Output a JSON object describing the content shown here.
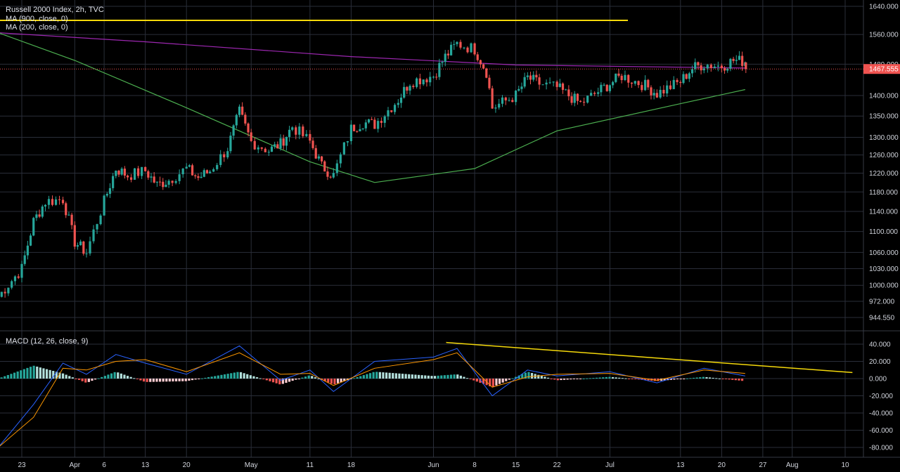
{
  "header": {
    "title": "Russell 2000 Index, 2h, TVC",
    "ma900_label": "MA (900, close, 0)",
    "ma200_label": "MA (200, close, 0)",
    "macd_label": "MACD (12, 26, close, 9)"
  },
  "colors": {
    "background": "#000000",
    "grid": "#2a2e39",
    "up": "#26a69a",
    "down": "#ef5350",
    "ma900": "#9c27b0",
    "ma200": "#4caf50",
    "trendline": "#f5d90a",
    "price_line": "#ef5350",
    "macd_line": "#2962ff",
    "signal_line": "#ff9800",
    "hist_up_strong": "#26a69a",
    "hist_up_weak": "#b2dfdb",
    "hist_down_strong": "#ef5350",
    "hist_down_weak": "#ffcdd2"
  },
  "price_axis": {
    "ticks": [
      "1640.000",
      "1560.000",
      "1480.000",
      "1400.000",
      "1350.000",
      "1300.000",
      "1260.000",
      "1220.000",
      "1180.000",
      "1140.000",
      "1100.000",
      "1060.000",
      "1030.000",
      "1000.000",
      "972.000",
      "944.550"
    ],
    "current_price": "1467.555"
  },
  "macd_axis": {
    "ticks": [
      "40.000",
      "20.000",
      "0.000",
      "-20.000",
      "-40.000",
      "-60.000",
      "-80.000"
    ]
  },
  "time_axis": {
    "labels": [
      "23",
      "Apr",
      "6",
      "13",
      "20",
      "May",
      "11",
      "18",
      "Jun",
      "8",
      "15",
      "22",
      "Jul",
      "13",
      "20",
      "27",
      "Aug",
      "10"
    ]
  },
  "chart_data": [
    {
      "type": "candlestick",
      "title": "Russell 2000 Index, 2h, TVC",
      "scale": "log",
      "ylim": [
        944.55,
        1640
      ],
      "current_price": 1467.555,
      "close_path": [
        [
          "Mar 19",
          980
        ],
        [
          "Mar 23",
          1030
        ],
        [
          "Mar 25",
          1120
        ],
        [
          "Mar 27",
          1160
        ],
        [
          "Mar 30",
          1165
        ],
        [
          "Apr 1",
          1080
        ],
        [
          "Apr 3",
          1060
        ],
        [
          "Apr 6",
          1160
        ],
        [
          "Apr 8",
          1230
        ],
        [
          "Apr 10",
          1215
        ],
        [
          "Apr 13",
          1225
        ],
        [
          "Apr 15",
          1195
        ],
        [
          "Apr 17",
          1205
        ],
        [
          "Apr 20",
          1230
        ],
        [
          "Apr 22",
          1210
        ],
        [
          "Apr 24",
          1225
        ],
        [
          "Apr 27",
          1275
        ],
        [
          "Apr 29",
          1360
        ],
        [
          "May 1",
          1290
        ],
        [
          "May 4",
          1270
        ],
        [
          "May 6",
          1285
        ],
        [
          "May 8",
          1325
        ],
        [
          "May 11",
          1290
        ],
        [
          "May 13",
          1235
        ],
        [
          "May 15",
          1215
        ],
        [
          "May 18",
          1320
        ],
        [
          "May 20",
          1335
        ],
        [
          "May 22",
          1330
        ],
        [
          "May 26",
          1390
        ],
        [
          "May 28",
          1435
        ],
        [
          "Jun 1",
          1450
        ],
        [
          "Jun 3",
          1500
        ],
        [
          "Jun 5",
          1535
        ],
        [
          "Jun 8",
          1520
        ],
        [
          "Jun 10",
          1460
        ],
        [
          "Jun 11",
          1370
        ],
        [
          "Jun 15",
          1400
        ],
        [
          "Jun 17",
          1445
        ],
        [
          "Jun 19",
          1430
        ],
        [
          "Jun 22",
          1420
        ],
        [
          "Jun 24",
          1400
        ],
        [
          "Jun 26",
          1380
        ],
        [
          "Jun 29",
          1410
        ],
        [
          "Jul 1",
          1430
        ],
        [
          "Jul 3",
          1450
        ],
        [
          "Jul 7",
          1425
        ],
        [
          "Jul 9",
          1405
        ],
        [
          "Jul 13",
          1435
        ],
        [
          "Jul 15",
          1470
        ],
        [
          "Jul 17",
          1480
        ],
        [
          "Jul 20",
          1475
        ],
        [
          "Jul 22",
          1490
        ],
        [
          "Jul 24",
          1488
        ],
        [
          "Jul 24",
          1467.555
        ]
      ]
    },
    {
      "type": "line",
      "series": [
        {
          "name": "MA (900, close, 0)",
          "points": [
            [
              "Mar 19",
              1565
            ],
            [
              "Apr 13",
              1540
            ],
            [
              "May 18",
              1500
            ],
            [
              "Jun 15",
              1478
            ],
            [
              "Jul 24",
              1470
            ]
          ]
        },
        {
          "name": "MA (200, close, 0)",
          "points": [
            [
              "Mar 19",
              1565
            ],
            [
              "Apr 1",
              1490
            ],
            [
              "Apr 20",
              1370
            ],
            [
              "May 11",
              1245
            ],
            [
              "May 22",
              1200
            ],
            [
              "Jun 8",
              1230
            ],
            [
              "Jun 22",
              1315
            ],
            [
              "Jul 13",
              1380
            ],
            [
              "Jul 24",
              1415
            ]
          ]
        }
      ]
    },
    {
      "type": "line",
      "title": "MACD (12, 26, close, 9)",
      "ylim": [
        -85,
        45
      ],
      "series": [
        {
          "name": "MACD",
          "points": [
            [
              "Mar 19",
              -80
            ],
            [
              "Mar 25",
              -30
            ],
            [
              "Mar 30",
              18
            ],
            [
              "Apr 3",
              5
            ],
            [
              "Apr 8",
              28
            ],
            [
              "Apr 13",
              18
            ],
            [
              "Apr 20",
              5
            ],
            [
              "Apr 29",
              38
            ],
            [
              "May 6",
              -2
            ],
            [
              "May 11",
              10
            ],
            [
              "May 15",
              -15
            ],
            [
              "May 22",
              20
            ],
            [
              "Jun 1",
              25
            ],
            [
              "Jun 5",
              35
            ],
            [
              "Jun 11",
              -20
            ],
            [
              "Jun 17",
              10
            ],
            [
              "Jun 22",
              3
            ],
            [
              "Jul 1",
              8
            ],
            [
              "Jul 9",
              -5
            ],
            [
              "Jul 17",
              12
            ],
            [
              "Jul 24",
              3
            ]
          ]
        },
        {
          "name": "Signal",
          "points": [
            [
              "Mar 19",
              -80
            ],
            [
              "Mar 25",
              -45
            ],
            [
              "Mar 30",
              12
            ],
            [
              "Apr 3",
              10
            ],
            [
              "Apr 8",
              20
            ],
            [
              "Apr 13",
              22
            ],
            [
              "Apr 20",
              8
            ],
            [
              "Apr 29",
              30
            ],
            [
              "May 6",
              5
            ],
            [
              "May 11",
              6
            ],
            [
              "May 15",
              -8
            ],
            [
              "May 22",
              12
            ],
            [
              "Jun 1",
              22
            ],
            [
              "Jun 5",
              30
            ],
            [
              "Jun 11",
              -10
            ],
            [
              "Jun 17",
              2
            ],
            [
              "Jun 22",
              5
            ],
            [
              "Jul 1",
              6
            ],
            [
              "Jul 9",
              -2
            ],
            [
              "Jul 17",
              10
            ],
            [
              "Jul 24",
              6
            ]
          ]
        }
      ],
      "trendline": [
        [
          "Jun 1",
          42
        ],
        [
          "Aug 11",
          7
        ]
      ]
    }
  ]
}
